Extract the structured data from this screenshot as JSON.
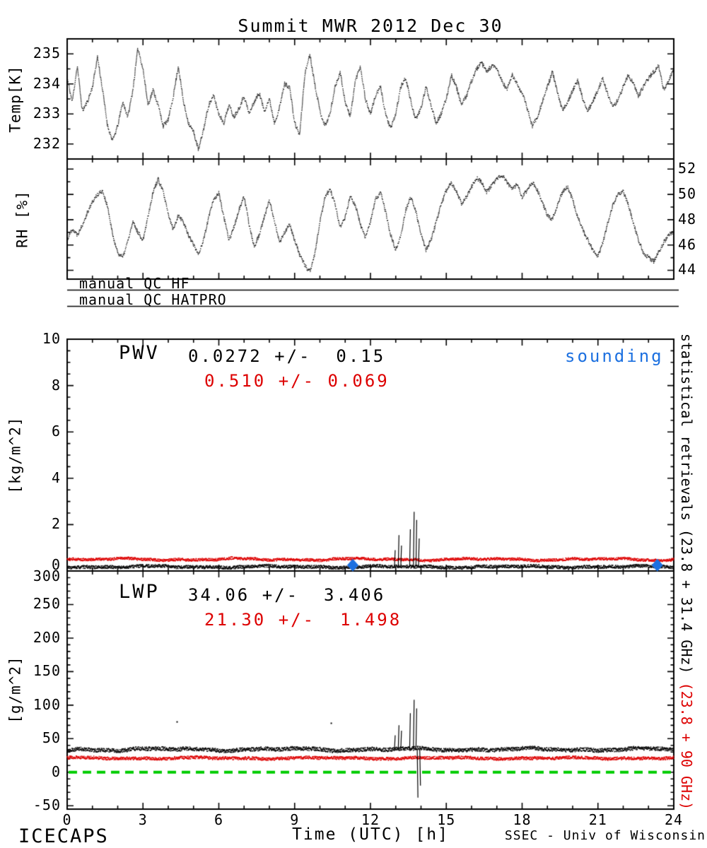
{
  "title": "Summit MWR 2012 Dec 30",
  "footer": {
    "left": "ICECAPS",
    "right": "SSEC - Univ of Wisconsin"
  },
  "qc": {
    "hf_label": "manual QC HF",
    "hatpro_label": "manual QC HATPRO"
  },
  "right_caption": {
    "black": "statistical retrievals (23.8 + 31.4 GHz)",
    "red": " (23.8 + 90 GHz)"
  },
  "colors": {
    "black": "#000000",
    "red": "#dd0000",
    "blue": "#1c70e0",
    "green": "#00cc00"
  },
  "x_axis": {
    "label": "Time (UTC) [h]",
    "range": [
      0,
      24
    ],
    "ticks": [
      0,
      3,
      6,
      9,
      12,
      15,
      18,
      21,
      24
    ],
    "minor_step": 1
  },
  "chart_data": [
    {
      "id": "temp",
      "type": "scatter",
      "ylabel": "Temp[K]",
      "ylim": [
        231.5,
        235.5
      ],
      "yticks": [
        232,
        233,
        234,
        235
      ],
      "ytick_side": "left",
      "series": [
        {
          "name": "surface air temperature",
          "color": "#000000",
          "style": "dotted",
          "x0": 0,
          "dx": 0.2,
          "y": [
            234.2,
            233.4,
            234.6,
            233.1,
            233.4,
            233.9,
            234.9,
            233.8,
            232.6,
            232.1,
            232.6,
            233.4,
            232.9,
            233.8,
            235.2,
            234.5,
            233.3,
            233.8,
            233.3,
            232.6,
            232.8,
            233.6,
            234.6,
            233.4,
            232.7,
            232.4,
            231.8,
            232.5,
            233.3,
            233.6,
            233.0,
            232.7,
            233.3,
            232.9,
            233.2,
            233.6,
            233.0,
            233.4,
            233.7,
            233.1,
            233.5,
            232.7,
            233.2,
            234.0,
            233.9,
            232.7,
            232.3,
            234.3,
            235.0,
            234.0,
            233.1,
            232.6,
            233.0,
            233.9,
            234.4,
            233.4,
            232.9,
            234.1,
            234.6,
            233.5,
            233.0,
            233.6,
            233.9,
            233.0,
            232.5,
            233.0,
            233.9,
            234.2,
            233.4,
            232.8,
            233.2,
            233.9,
            233.3,
            232.7,
            233.0,
            233.5,
            234.3,
            233.9,
            233.3,
            233.6,
            234.1,
            234.5,
            234.7,
            234.4,
            234.6,
            234.5,
            234.1,
            233.8,
            234.3,
            234.0,
            233.7,
            233.2,
            232.6,
            232.9,
            233.4,
            233.9,
            234.4,
            233.7,
            233.1,
            233.4,
            233.8,
            234.1,
            233.5,
            233.1,
            233.4,
            233.8,
            234.2,
            233.6,
            233.2,
            233.5,
            233.9,
            234.3,
            234.0,
            233.6,
            233.9,
            234.2,
            234.4,
            234.6,
            233.8,
            234.1,
            234.5
          ]
        }
      ]
    },
    {
      "id": "rh",
      "type": "scatter",
      "ylabel": "RH [%]",
      "ylim": [
        43.3,
        52.8
      ],
      "yticks": [
        44,
        46,
        48,
        50,
        52
      ],
      "ytick_side": "right",
      "series": [
        {
          "name": "relative humidity",
          "color": "#000000",
          "style": "dotted",
          "x0": 0,
          "dx": 0.2,
          "y": [
            46.4,
            47.3,
            46.8,
            47.6,
            48.6,
            49.4,
            50.0,
            50.3,
            49.0,
            46.8,
            45.4,
            45.0,
            46.3,
            47.8,
            47.0,
            46.4,
            48.3,
            50.2,
            51.2,
            50.2,
            48.4,
            47.2,
            48.4,
            47.8,
            46.8,
            46.0,
            45.3,
            46.4,
            48.2,
            49.6,
            50.1,
            48.2,
            46.4,
            47.4,
            48.8,
            49.8,
            47.6,
            45.9,
            46.8,
            48.2,
            49.5,
            48.0,
            46.2,
            47.0,
            47.6,
            46.4,
            45.2,
            44.4,
            43.9,
            45.3,
            47.8,
            49.8,
            50.4,
            49.2,
            47.4,
            48.2,
            49.8,
            49.2,
            47.6,
            46.6,
            47.8,
            49.6,
            50.2,
            48.6,
            46.8,
            45.6,
            46.8,
            48.8,
            49.8,
            48.6,
            46.8,
            45.6,
            46.4,
            47.8,
            49.2,
            50.3,
            50.9,
            50.2,
            49.3,
            49.8,
            50.6,
            51.3,
            51.0,
            50.2,
            50.7,
            51.2,
            51.5,
            51.0,
            50.4,
            50.8,
            49.8,
            50.3,
            51.0,
            50.4,
            49.4,
            48.4,
            48.0,
            49.2,
            50.2,
            50.6,
            49.6,
            48.2,
            47.2,
            46.4,
            45.6,
            45.1,
            46.2,
            47.8,
            49.2,
            50.0,
            50.2,
            49.2,
            47.8,
            46.4,
            45.4,
            45.0,
            44.7,
            45.4,
            46.2,
            46.8,
            47.1
          ]
        }
      ]
    },
    {
      "id": "pwv",
      "type": "line",
      "ylabel": "[kg/m^2]",
      "ylim": [
        0,
        10
      ],
      "yticks": [
        0,
        2,
        4,
        6,
        8,
        10
      ],
      "ytick_side": "left",
      "annotation": {
        "label": "PWV",
        "stat_black": "0.0272 +/-  0.15",
        "stat_red": "0.510 +/- 0.069"
      },
      "series": [
        {
          "name": "PWV retrieval 23.8 + 31.4 GHz",
          "color": "#000000",
          "visual_baseline": 0.18,
          "stat_mean": 0.0272,
          "stat_std": 0.15
        },
        {
          "name": "PWV retrieval 23.8 + 90 GHz",
          "color": "#dd0000",
          "visual_baseline": 0.5,
          "stat_mean": 0.51,
          "stat_std": 0.069
        }
      ],
      "spikes": [
        [
          12.95,
          0.9
        ],
        [
          13.1,
          1.55
        ],
        [
          13.2,
          1.1
        ],
        [
          13.55,
          1.8
        ],
        [
          13.7,
          2.55
        ],
        [
          13.8,
          2.2
        ],
        [
          13.9,
          1.4
        ]
      ],
      "sounding": {
        "label": "sounding",
        "color": "#1c70e0",
        "marker": "diamond",
        "points": [
          [
            11.3,
            0.25
          ],
          [
            23.35,
            0.25
          ]
        ]
      }
    },
    {
      "id": "lwp",
      "type": "line",
      "ylabel": "[g/m^2]",
      "ylim": [
        -55,
        300
      ],
      "yticks": [
        -50,
        0,
        50,
        100,
        150,
        200,
        250,
        300
      ],
      "ytick_side": "left",
      "annotation": {
        "label": "LWP",
        "stat_black": "34.06 +/-  3.406",
        "stat_red": "21.30 +/-  1.498"
      },
      "series": [
        {
          "name": "LWP retrieval 23.8 + 31.4 GHz",
          "color": "#000000",
          "visual_baseline": 34,
          "stat_mean": 34.06,
          "stat_std": 3.406
        },
        {
          "name": "LWP retrieval 23.8 + 90 GHz",
          "color": "#dd0000",
          "visual_baseline": 21,
          "stat_mean": 21.3,
          "stat_std": 1.498
        }
      ],
      "spikes": [
        [
          12.95,
          55
        ],
        [
          13.1,
          70
        ],
        [
          13.2,
          62
        ],
        [
          13.55,
          88
        ],
        [
          13.7,
          108
        ],
        [
          13.8,
          95
        ],
        [
          13.85,
          -38
        ],
        [
          13.95,
          -20
        ]
      ],
      "outliers": [
        [
          4.35,
          75
        ],
        [
          10.45,
          73
        ]
      ],
      "zero_line": {
        "y": 0,
        "color": "#00cc00",
        "style": "dashed"
      }
    }
  ]
}
